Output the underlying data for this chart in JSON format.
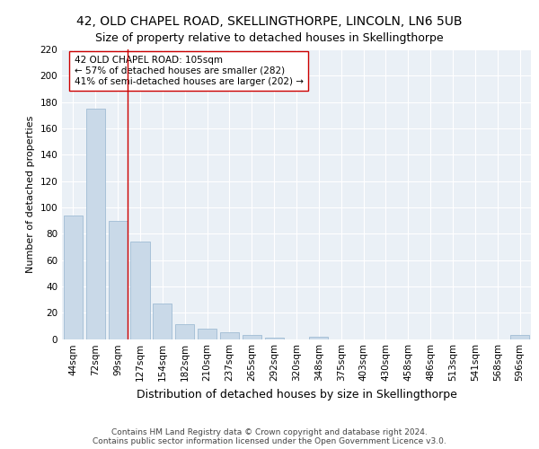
{
  "title1": "42, OLD CHAPEL ROAD, SKELLINGTHORPE, LINCOLN, LN6 5UB",
  "title2": "Size of property relative to detached houses in Skellingthorpe",
  "xlabel": "Distribution of detached houses by size in Skellingthorpe",
  "ylabel": "Number of detached properties",
  "categories": [
    "44sqm",
    "72sqm",
    "99sqm",
    "127sqm",
    "154sqm",
    "182sqm",
    "210sqm",
    "237sqm",
    "265sqm",
    "292sqm",
    "320sqm",
    "348sqm",
    "375sqm",
    "403sqm",
    "430sqm",
    "458sqm",
    "486sqm",
    "513sqm",
    "541sqm",
    "568sqm",
    "596sqm"
  ],
  "values": [
    94,
    175,
    90,
    74,
    27,
    11,
    8,
    5,
    3,
    1,
    0,
    2,
    0,
    0,
    0,
    0,
    0,
    0,
    0,
    0,
    3
  ],
  "bar_color": "#c9d9e8",
  "bar_edge_color": "#a0bcd4",
  "highlight_line_color": "#cc0000",
  "annotation_text": "42 OLD CHAPEL ROAD: 105sqm\n← 57% of detached houses are smaller (282)\n41% of semi-detached houses are larger (202) →",
  "annotation_box_color": "#ffffff",
  "annotation_box_edge": "#cc0000",
  "ylim": [
    0,
    220
  ],
  "yticks": [
    0,
    20,
    40,
    60,
    80,
    100,
    120,
    140,
    160,
    180,
    200,
    220
  ],
  "background_color": "#eaf0f6",
  "footer_text": "Contains HM Land Registry data © Crown copyright and database right 2024.\nContains public sector information licensed under the Open Government Licence v3.0.",
  "title1_fontsize": 10,
  "title2_fontsize": 9,
  "xlabel_fontsize": 9,
  "ylabel_fontsize": 8,
  "tick_fontsize": 7.5,
  "annotation_fontsize": 7.5,
  "footer_fontsize": 6.5
}
